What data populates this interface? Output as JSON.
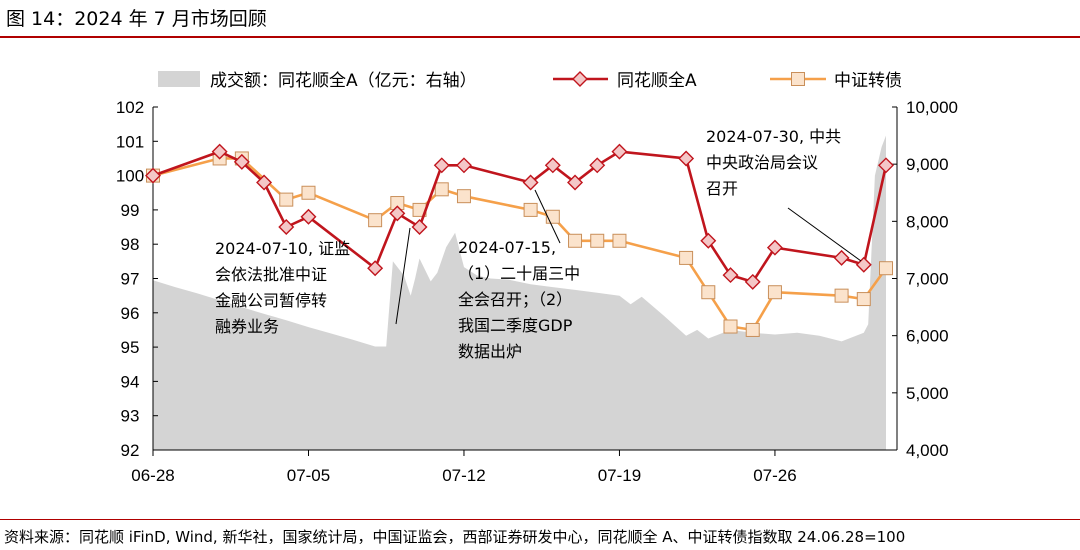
{
  "figure_title": "图 14：2024 年 7 月市场回顾",
  "source_note": "资料来源：同花顺 iFinD, Wind, 新华社，国家统计局，中国证监会，西部证券研发中心，同花顺全 A、中证转债指数取 24.06.28=100",
  "annotations": {
    "a1": "2024-07-10, 证监\n会依法批准中证\n金融公司暂停转\n融券业务",
    "a2": "2024-07-15,\n（1）二十届三中\n全会召开；（2）\n我国二季度GDP\n数据出炉",
    "a3": "2024-07-30, 中共\n中央政治局会议\n召开"
  },
  "colors": {
    "index_a": "#c0151d",
    "cb": "#f5a04a",
    "volume": "#d4d4d4",
    "axis": "#000000"
  },
  "chart_data": {
    "type": "line",
    "x_ticks": [
      "06-28",
      "07-05",
      "07-12",
      "07-19",
      "07-26"
    ],
    "x_tick_days": [
      0,
      7,
      14,
      21,
      28
    ],
    "y_left": {
      "min": 92,
      "max": 102,
      "step": 1,
      "ticks": [
        "92",
        "93",
        "94",
        "95",
        "96",
        "97",
        "98",
        "99",
        "100",
        "101",
        "102"
      ]
    },
    "y_right": {
      "min": 4000,
      "max": 10000,
      "ticks": [
        "4,000",
        "5,000",
        "6,000",
        "7,000",
        "8,000",
        "9,000",
        "10,000"
      ]
    },
    "legend_placement": "top",
    "series": [
      {
        "name": "成交额：同花顺全A（亿元：右轴）",
        "kind": "area",
        "axis": "right",
        "points": [
          [
            0,
            6970
          ],
          [
            1,
            6850
          ],
          [
            2,
            6740
          ],
          [
            3,
            6620
          ],
          [
            4,
            6500
          ],
          [
            5,
            6380
          ],
          [
            6,
            6270
          ],
          [
            7,
            6150
          ],
          [
            8,
            6040
          ],
          [
            9,
            5930
          ],
          [
            10,
            5810
          ],
          [
            10.5,
            5810
          ],
          [
            10.8,
            7300
          ],
          [
            11.3,
            7050
          ],
          [
            11.6,
            6700
          ],
          [
            11.8,
            7000
          ],
          [
            12,
            7350
          ],
          [
            12.5,
            6950
          ],
          [
            12.8,
            7100
          ],
          [
            13.2,
            7550
          ],
          [
            13.6,
            7800
          ],
          [
            14.0,
            7200
          ],
          [
            14.6,
            7050
          ],
          [
            15.2,
            7000
          ],
          [
            16,
            6980
          ],
          [
            17,
            6900
          ],
          [
            18,
            6850
          ],
          [
            19,
            6800
          ],
          [
            20,
            6750
          ],
          [
            21,
            6700
          ],
          [
            21.5,
            6550
          ],
          [
            22,
            6680
          ],
          [
            23,
            6350
          ],
          [
            24,
            6000
          ],
          [
            24.5,
            6100
          ],
          [
            25,
            5950
          ],
          [
            26,
            6100
          ],
          [
            27,
            6050
          ],
          [
            28,
            6020
          ],
          [
            29,
            6050
          ],
          [
            30,
            6000
          ],
          [
            31,
            5900
          ],
          [
            32,
            6050
          ],
          [
            32.2,
            6200
          ],
          [
            32.5,
            8800
          ],
          [
            32.8,
            9300
          ],
          [
            33,
            9500
          ]
        ],
        "fill_to_day": 33
      },
      {
        "name": "同花顺全A",
        "kind": "line",
        "axis": "left",
        "marker": "diamond",
        "points": [
          [
            0,
            100.0
          ],
          [
            3,
            100.7
          ],
          [
            4,
            100.4
          ],
          [
            5,
            99.8
          ],
          [
            6,
            98.5
          ],
          [
            7,
            98.8
          ],
          [
            10,
            97.3
          ],
          [
            11,
            98.9
          ],
          [
            12,
            98.5
          ],
          [
            13,
            100.3
          ],
          [
            14,
            100.3
          ],
          [
            17,
            99.8
          ],
          [
            18,
            100.3
          ],
          [
            19,
            99.8
          ],
          [
            20,
            100.3
          ],
          [
            21,
            100.7
          ],
          [
            24,
            100.5
          ],
          [
            25,
            98.1
          ],
          [
            26,
            97.1
          ],
          [
            27,
            96.9
          ],
          [
            28,
            97.9
          ],
          [
            31,
            97.6
          ],
          [
            32,
            97.4
          ],
          [
            33,
            100.3
          ]
        ]
      },
      {
        "name": "中证转债",
        "kind": "line",
        "axis": "left",
        "marker": "square",
        "points": [
          [
            0,
            100.0
          ],
          [
            3,
            100.5
          ],
          [
            4,
            100.5
          ],
          [
            6,
            99.3
          ],
          [
            7,
            99.5
          ],
          [
            10,
            98.7
          ],
          [
            11,
            99.2
          ],
          [
            12,
            99.0
          ],
          [
            13,
            99.6
          ],
          [
            14,
            99.4
          ],
          [
            17,
            99.0
          ],
          [
            18,
            98.8
          ],
          [
            19,
            98.1
          ],
          [
            20,
            98.1
          ],
          [
            21,
            98.1
          ],
          [
            24,
            97.6
          ],
          [
            25,
            96.6
          ],
          [
            26,
            95.6
          ],
          [
            27,
            95.5
          ],
          [
            28,
            96.6
          ],
          [
            31,
            96.5
          ],
          [
            32,
            96.4
          ],
          [
            33,
            97.3
          ]
        ]
      }
    ]
  }
}
